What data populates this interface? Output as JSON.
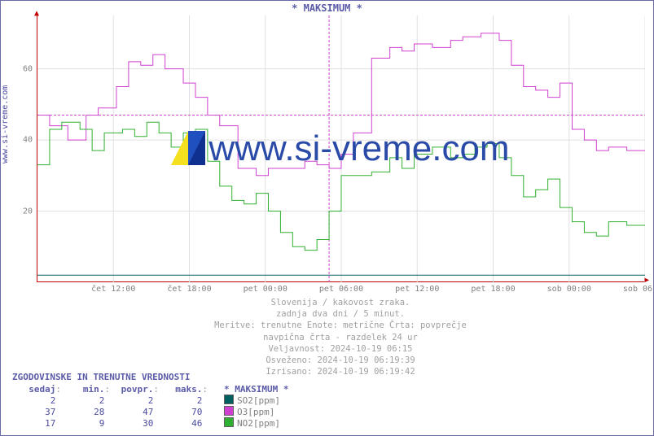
{
  "title": "* MAKSIMUM *",
  "ylabel": "www.si-vreme.com",
  "watermark": "www.si-vreme.com",
  "chart": {
    "type": "step-line",
    "background": "#ffffff",
    "grid_color": "#e0e0e0",
    "axis_color": "#c00000",
    "divider_color": "#d040d0",
    "divider_x": 48,
    "reference_line": {
      "color": "#d040d0",
      "dash": "3,2",
      "y": 47
    },
    "xlim": [
      0,
      100
    ],
    "ylim": [
      0,
      75
    ],
    "y_ticks": [
      20,
      40,
      60
    ],
    "x_ticks": [
      {
        "pos": 12.5,
        "label": "čet 12:00"
      },
      {
        "pos": 25,
        "label": "čet 18:00"
      },
      {
        "pos": 37.5,
        "label": "pet 00:00"
      },
      {
        "pos": 50,
        "label": "pet 06:00"
      },
      {
        "pos": 62.5,
        "label": "pet 12:00"
      },
      {
        "pos": 75,
        "label": "pet 18:00"
      },
      {
        "pos": 87.5,
        "label": "sob 00:00"
      },
      {
        "pos": 100,
        "label": "sob 06:00"
      }
    ],
    "series": [
      {
        "name": "SO2[ppm]",
        "color": "#006060",
        "line_width": 1,
        "points": [
          [
            0,
            2
          ],
          [
            100,
            2
          ]
        ]
      },
      {
        "name": "O3[ppm]",
        "color": "#d040d0",
        "line_width": 1,
        "points": [
          [
            0,
            47
          ],
          [
            2,
            47
          ],
          [
            2,
            44
          ],
          [
            5,
            44
          ],
          [
            5,
            40
          ],
          [
            8,
            40
          ],
          [
            8,
            47
          ],
          [
            10,
            47
          ],
          [
            10,
            49
          ],
          [
            13,
            49
          ],
          [
            13,
            55
          ],
          [
            15,
            55
          ],
          [
            15,
            62
          ],
          [
            17,
            62
          ],
          [
            17,
            61
          ],
          [
            19,
            61
          ],
          [
            19,
            64
          ],
          [
            21,
            64
          ],
          [
            21,
            60
          ],
          [
            24,
            60
          ],
          [
            24,
            56
          ],
          [
            26,
            56
          ],
          [
            26,
            52
          ],
          [
            28,
            52
          ],
          [
            28,
            47
          ],
          [
            30,
            47
          ],
          [
            30,
            44
          ],
          [
            33,
            44
          ],
          [
            33,
            32
          ],
          [
            36,
            32
          ],
          [
            36,
            30
          ],
          [
            38,
            30
          ],
          [
            38,
            32
          ],
          [
            42,
            32
          ],
          [
            42,
            32
          ],
          [
            44,
            32
          ],
          [
            44,
            34
          ],
          [
            46,
            34
          ],
          [
            46,
            33
          ],
          [
            48,
            33
          ],
          [
            48,
            32
          ],
          [
            50,
            32
          ],
          [
            50,
            36
          ],
          [
            52,
            36
          ],
          [
            52,
            42
          ],
          [
            55,
            42
          ],
          [
            55,
            63
          ],
          [
            58,
            63
          ],
          [
            58,
            66
          ],
          [
            60,
            66
          ],
          [
            60,
            65
          ],
          [
            62,
            65
          ],
          [
            62,
            67
          ],
          [
            65,
            67
          ],
          [
            65,
            66
          ],
          [
            68,
            66
          ],
          [
            68,
            68
          ],
          [
            70,
            68
          ],
          [
            70,
            69
          ],
          [
            73,
            69
          ],
          [
            73,
            70
          ],
          [
            76,
            70
          ],
          [
            76,
            68
          ],
          [
            78,
            68
          ],
          [
            78,
            61
          ],
          [
            80,
            61
          ],
          [
            80,
            55
          ],
          [
            82,
            55
          ],
          [
            82,
            54
          ],
          [
            84,
            54
          ],
          [
            84,
            52
          ],
          [
            86,
            52
          ],
          [
            86,
            56
          ],
          [
            88,
            56
          ],
          [
            88,
            43
          ],
          [
            90,
            43
          ],
          [
            90,
            40
          ],
          [
            92,
            40
          ],
          [
            92,
            37
          ],
          [
            94,
            37
          ],
          [
            94,
            38
          ],
          [
            97,
            38
          ],
          [
            97,
            37
          ],
          [
            100,
            37
          ]
        ]
      },
      {
        "name": "NO2[ppm]",
        "color": "#30b030",
        "line_width": 1,
        "points": [
          [
            0,
            33
          ],
          [
            2,
            33
          ],
          [
            2,
            43
          ],
          [
            4,
            43
          ],
          [
            4,
            45
          ],
          [
            7,
            45
          ],
          [
            7,
            43
          ],
          [
            9,
            43
          ],
          [
            9,
            37
          ],
          [
            11,
            37
          ],
          [
            11,
            42
          ],
          [
            14,
            42
          ],
          [
            14,
            43
          ],
          [
            16,
            43
          ],
          [
            16,
            41
          ],
          [
            18,
            41
          ],
          [
            18,
            45
          ],
          [
            20,
            45
          ],
          [
            20,
            42
          ],
          [
            22,
            42
          ],
          [
            22,
            38
          ],
          [
            24,
            38
          ],
          [
            24,
            42
          ],
          [
            26,
            42
          ],
          [
            26,
            43
          ],
          [
            28,
            43
          ],
          [
            28,
            34
          ],
          [
            30,
            34
          ],
          [
            30,
            27
          ],
          [
            32,
            27
          ],
          [
            32,
            23
          ],
          [
            34,
            23
          ],
          [
            34,
            22
          ],
          [
            36,
            22
          ],
          [
            36,
            25
          ],
          [
            38,
            25
          ],
          [
            38,
            20
          ],
          [
            40,
            20
          ],
          [
            40,
            14
          ],
          [
            42,
            14
          ],
          [
            42,
            10
          ],
          [
            44,
            10
          ],
          [
            44,
            9
          ],
          [
            46,
            9
          ],
          [
            46,
            12
          ],
          [
            48,
            12
          ],
          [
            48,
            20
          ],
          [
            50,
            20
          ],
          [
            50,
            30
          ],
          [
            52,
            30
          ],
          [
            52,
            30
          ],
          [
            55,
            30
          ],
          [
            55,
            31
          ],
          [
            58,
            31
          ],
          [
            58,
            35
          ],
          [
            60,
            35
          ],
          [
            60,
            32
          ],
          [
            62,
            32
          ],
          [
            62,
            36
          ],
          [
            65,
            36
          ],
          [
            65,
            38
          ],
          [
            68,
            38
          ],
          [
            68,
            35
          ],
          [
            70,
            35
          ],
          [
            70,
            36
          ],
          [
            72,
            36
          ],
          [
            72,
            38
          ],
          [
            74,
            38
          ],
          [
            74,
            39
          ],
          [
            76,
            39
          ],
          [
            76,
            35
          ],
          [
            78,
            35
          ],
          [
            78,
            30
          ],
          [
            80,
            30
          ],
          [
            80,
            24
          ],
          [
            82,
            24
          ],
          [
            82,
            26
          ],
          [
            84,
            26
          ],
          [
            84,
            29
          ],
          [
            86,
            29
          ],
          [
            86,
            21
          ],
          [
            88,
            21
          ],
          [
            88,
            17
          ],
          [
            90,
            17
          ],
          [
            90,
            14
          ],
          [
            92,
            14
          ],
          [
            92,
            13
          ],
          [
            94,
            13
          ],
          [
            94,
            17
          ],
          [
            97,
            17
          ],
          [
            97,
            16
          ],
          [
            100,
            16
          ]
        ]
      }
    ]
  },
  "caption": {
    "l1": "Slovenija / kakovost zraka.",
    "l2": "zadnja dva dni / 5 minut.",
    "l3": "Meritve: trenutne  Enote: metrične  Črta: povprečje",
    "l4": "navpična črta - razdelek 24 ur",
    "l5": "Veljavnost: 2024-10-19 06:15",
    "l6": "Osveženo: 2024-10-19 06:19:39",
    "l7": "Izrisano: 2024-10-19 06:19:42"
  },
  "table": {
    "title": "ZGODOVINSKE IN TRENUTNE VREDNOSTI",
    "headers": [
      "sedaj",
      "min.",
      "povpr.",
      "maks."
    ],
    "rows": [
      {
        "vals": [
          "2",
          "2",
          "2",
          "2"
        ],
        "swatch": "#006060",
        "label": "SO2[ppm]"
      },
      {
        "vals": [
          "37",
          "28",
          "47",
          "70"
        ],
        "swatch": "#d040d0",
        "label": "O3[ppm]"
      },
      {
        "vals": [
          "17",
          "9",
          "30",
          "46"
        ],
        "swatch": "#30b030",
        "label": "NO2[ppm]"
      }
    ],
    "legend_title": "* MAKSIMUM *"
  }
}
